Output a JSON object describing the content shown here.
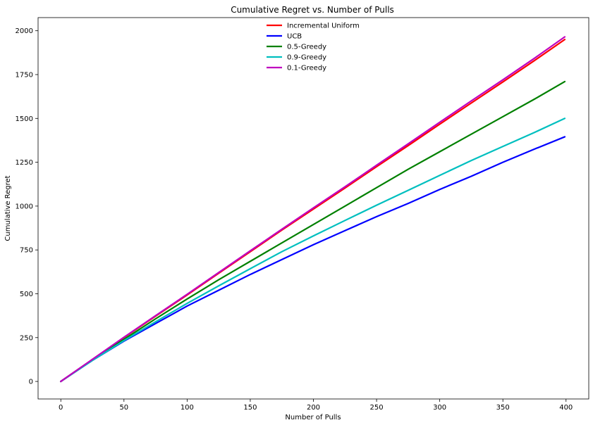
{
  "chart_data": {
    "type": "line",
    "title": "Cumulative Regret vs. Number of Pulls",
    "xlabel": "Number of Pulls",
    "ylabel": "Cumulative Regret",
    "xlim": [
      -18,
      418
    ],
    "ylim": [
      -100,
      2075
    ],
    "xticks": [
      0,
      50,
      100,
      150,
      200,
      250,
      300,
      350,
      400
    ],
    "yticks": [
      0,
      250,
      500,
      750,
      1000,
      1250,
      1500,
      1750,
      2000
    ],
    "grid": false,
    "legend_position": "upper center",
    "x": [
      0,
      25,
      50,
      75,
      100,
      125,
      150,
      175,
      200,
      225,
      250,
      275,
      300,
      325,
      350,
      375,
      399
    ],
    "series": [
      {
        "name": "Incremental Uniform",
        "color": "#ff0000",
        "values": [
          0,
          125,
          250,
          372,
          493,
          617,
          740,
          863,
          983,
          1103,
          1225,
          1345,
          1467,
          1588,
          1708,
          1830,
          1950
        ]
      },
      {
        "name": "UCB",
        "color": "#0000ff",
        "values": [
          0,
          120,
          230,
          330,
          430,
          520,
          610,
          695,
          780,
          860,
          940,
          1015,
          1095,
          1170,
          1250,
          1325,
          1395
        ]
      },
      {
        "name": "0.5-Greedy",
        "color": "#008000",
        "values": [
          0,
          123,
          240,
          357,
          470,
          580,
          685,
          790,
          895,
          1000,
          1105,
          1210,
          1310,
          1410,
          1510,
          1610,
          1710
        ]
      },
      {
        "name": "0.9-Greedy",
        "color": "#00bfbf",
        "values": [
          0,
          120,
          233,
          340,
          445,
          545,
          643,
          740,
          830,
          918,
          1005,
          1090,
          1175,
          1260,
          1340,
          1420,
          1500
        ]
      },
      {
        "name": "0.1-Greedy",
        "color": "#bf00bf",
        "values": [
          0,
          126,
          252,
          375,
          497,
          621,
          745,
          868,
          990,
          1110,
          1233,
          1355,
          1478,
          1600,
          1720,
          1843,
          1965
        ]
      }
    ]
  }
}
